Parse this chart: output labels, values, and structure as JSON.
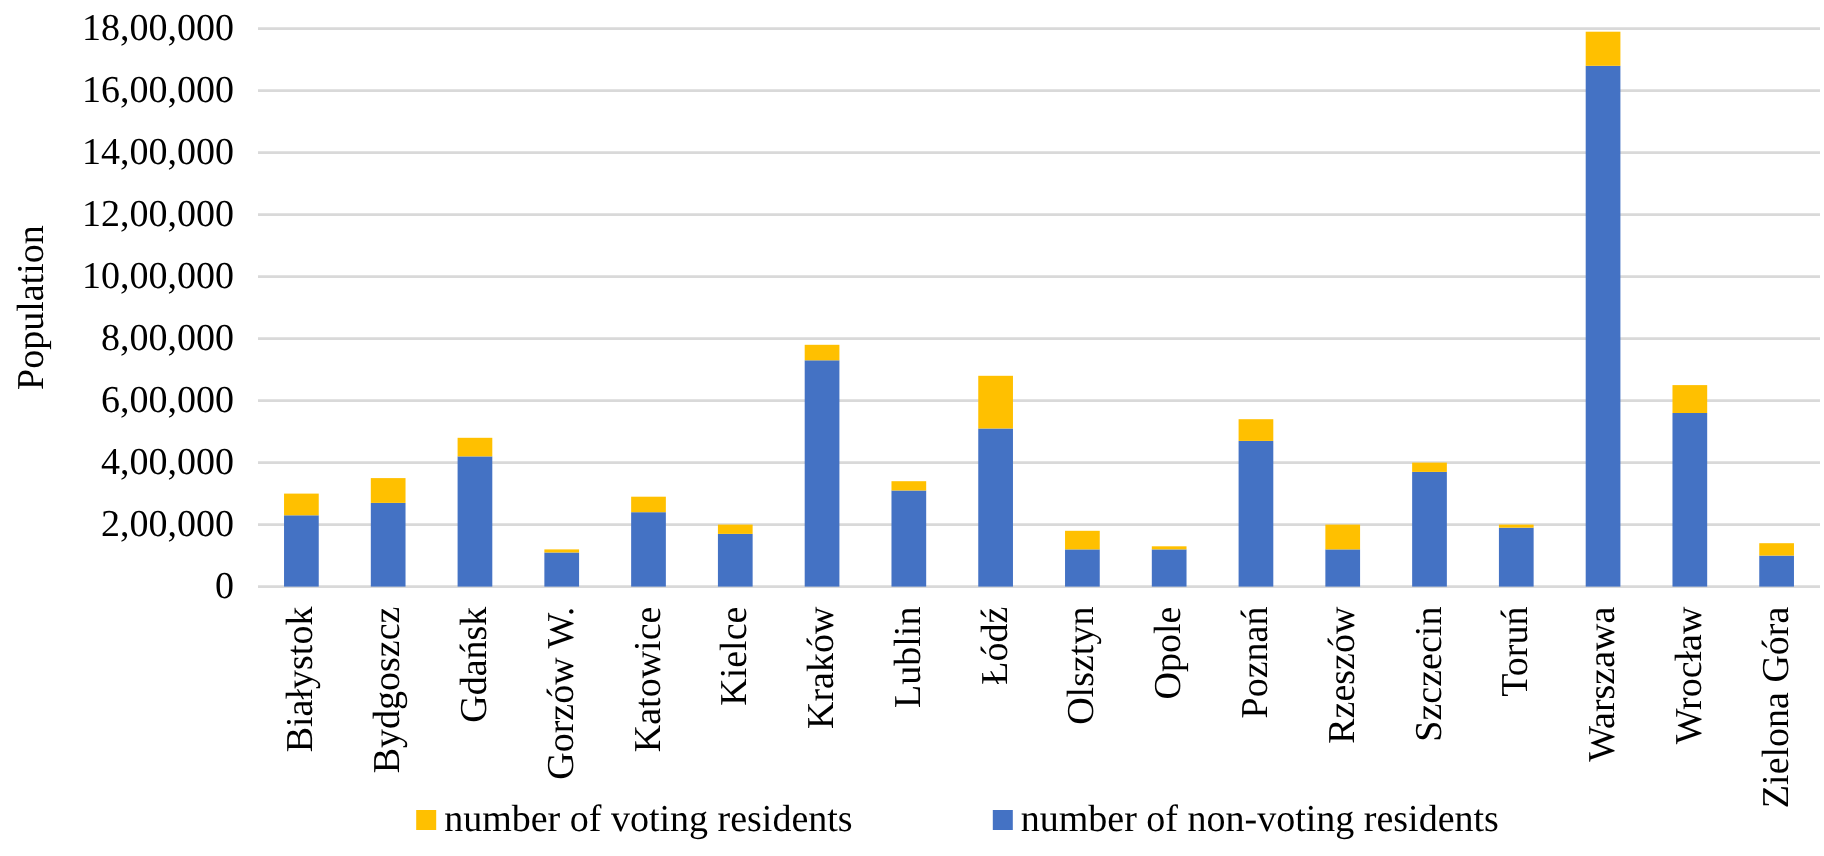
{
  "chart_data": {
    "type": "bar",
    "stacked": true,
    "ylabel": "Population",
    "categories": [
      "Białystok",
      "Bydgoszcz",
      "Gdańsk",
      "Gorzów W.",
      "Katowice",
      "Kielce",
      "Kraków",
      "Lublin",
      "Łódź",
      "Olsztyn",
      "Opole",
      "Poznań",
      "Rzeszów",
      "Szczecin",
      "Toruń",
      "Warszawa",
      "Wrocław",
      "Zielona Góra"
    ],
    "series": [
      {
        "name": "number of non-voting residents",
        "color": "#4472c4",
        "values": [
          230000,
          270000,
          420000,
          110000,
          240000,
          170000,
          730000,
          310000,
          510000,
          120000,
          120000,
          470000,
          120000,
          370000,
          190000,
          1680000,
          560000,
          100000
        ]
      },
      {
        "name": "number of voting residents",
        "color": "#ffc000",
        "values": [
          70000,
          80000,
          60000,
          10000,
          50000,
          30000,
          50000,
          30000,
          170000,
          60000,
          10000,
          70000,
          80000,
          30000,
          10000,
          110000,
          90000,
          40000
        ]
      }
    ],
    "ylim": [
      0,
      1800000
    ],
    "yticks": [
      0,
      {
        "value": 200000,
        "label": "2,00,000"
      },
      {
        "value": 400000,
        "label": "4,00,000"
      },
      {
        "value": 600000,
        "label": "6,00,000"
      },
      {
        "value": 800000,
        "label": "8,00,000"
      },
      {
        "value": 1000000,
        "label": "10,00,000"
      },
      {
        "value": 1200000,
        "label": "12,00,000"
      },
      {
        "value": 1400000,
        "label": "14,00,000"
      },
      {
        "value": 1600000,
        "label": "16,00,000"
      },
      {
        "value": 1800000,
        "label": "18,00,000"
      }
    ],
    "grid": true,
    "legend": "bottom"
  }
}
